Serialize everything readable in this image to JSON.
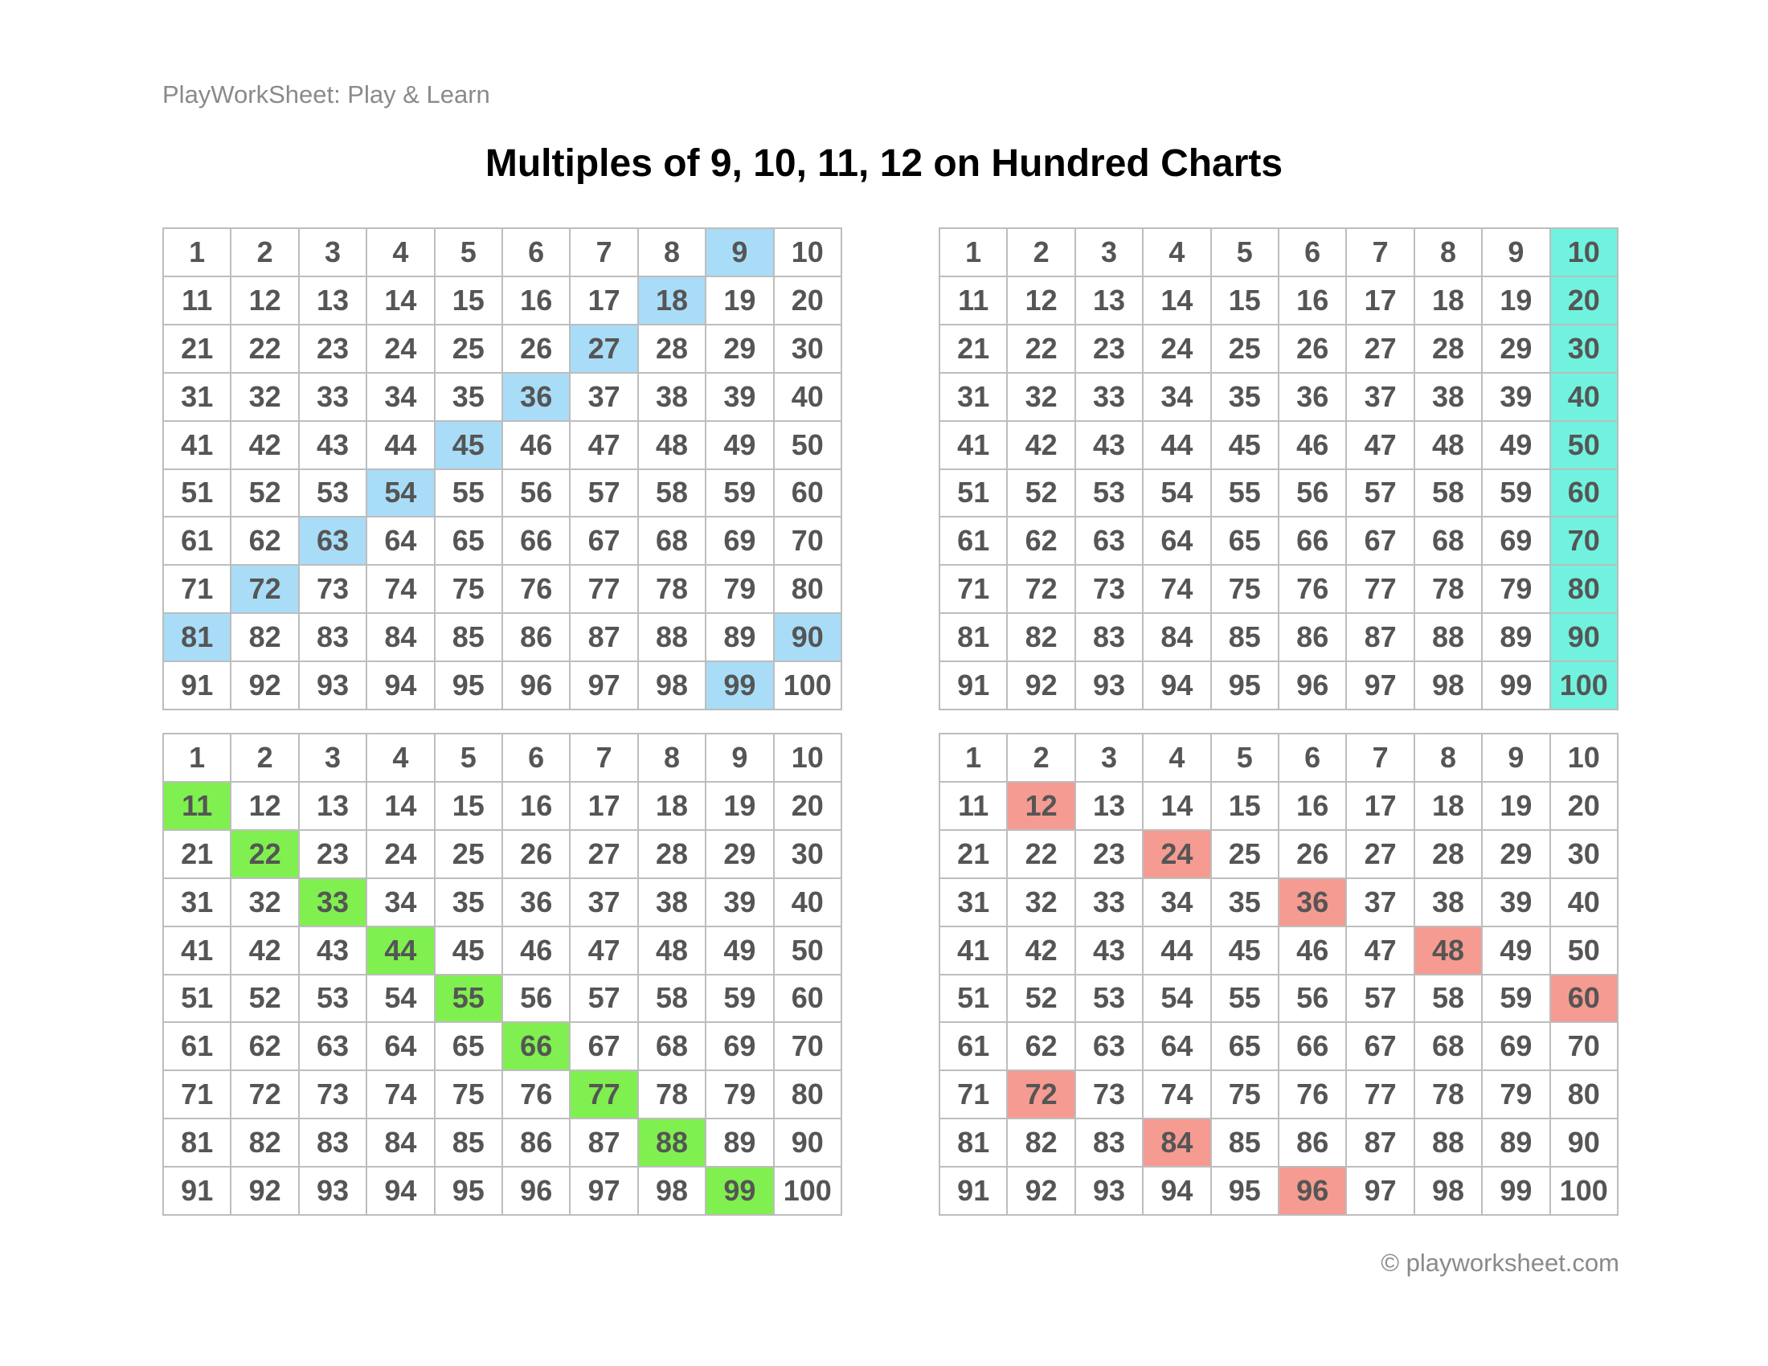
{
  "header": {
    "brand": "PlayWorkSheet: Play & Learn",
    "title": "Multiples of 9, 10, 11, 12 on Hundred Charts"
  },
  "grids": [
    {
      "highlight_color": "#a9dcf7",
      "highlighted": [
        9,
        18,
        27,
        36,
        45,
        54,
        63,
        72,
        81,
        90,
        99
      ],
      "cells": [
        1,
        2,
        3,
        4,
        5,
        6,
        7,
        8,
        9,
        10,
        11,
        12,
        13,
        14,
        15,
        16,
        17,
        18,
        19,
        20,
        21,
        22,
        23,
        24,
        25,
        26,
        27,
        28,
        29,
        30,
        31,
        32,
        33,
        34,
        35,
        36,
        37,
        38,
        39,
        40,
        41,
        42,
        43,
        44,
        45,
        46,
        47,
        48,
        49,
        50,
        51,
        52,
        53,
        54,
        55,
        56,
        57,
        58,
        59,
        60,
        61,
        62,
        63,
        64,
        65,
        66,
        67,
        68,
        69,
        70,
        71,
        72,
        73,
        74,
        75,
        76,
        77,
        78,
        79,
        80,
        81,
        82,
        83,
        84,
        85,
        86,
        87,
        88,
        89,
        90,
        91,
        92,
        93,
        94,
        95,
        96,
        97,
        98,
        99,
        100
      ]
    },
    {
      "highlight_color": "#70f2de",
      "highlighted": [
        10,
        20,
        30,
        40,
        50,
        60,
        70,
        80,
        90,
        100
      ],
      "cells": [
        1,
        2,
        3,
        4,
        5,
        6,
        7,
        8,
        9,
        10,
        11,
        12,
        13,
        14,
        15,
        16,
        17,
        18,
        19,
        20,
        21,
        22,
        23,
        24,
        25,
        26,
        27,
        28,
        29,
        30,
        31,
        32,
        33,
        34,
        35,
        36,
        37,
        38,
        39,
        40,
        41,
        42,
        43,
        44,
        45,
        46,
        47,
        48,
        49,
        50,
        51,
        52,
        53,
        54,
        55,
        56,
        57,
        58,
        59,
        60,
        61,
        62,
        63,
        64,
        65,
        66,
        67,
        68,
        69,
        70,
        71,
        72,
        73,
        74,
        75,
        76,
        77,
        78,
        79,
        80,
        81,
        82,
        83,
        84,
        85,
        86,
        87,
        88,
        89,
        90,
        91,
        92,
        93,
        94,
        95,
        96,
        97,
        98,
        99,
        100
      ]
    },
    {
      "highlight_color": "#7ff04f",
      "highlighted": [
        11,
        22,
        33,
        44,
        55,
        66,
        77,
        88,
        99
      ],
      "cells": [
        1,
        2,
        3,
        4,
        5,
        6,
        7,
        8,
        9,
        10,
        11,
        12,
        13,
        14,
        15,
        16,
        17,
        18,
        19,
        20,
        21,
        22,
        23,
        24,
        25,
        26,
        27,
        28,
        29,
        30,
        31,
        32,
        33,
        34,
        35,
        36,
        37,
        38,
        39,
        40,
        41,
        42,
        43,
        44,
        45,
        46,
        47,
        48,
        49,
        50,
        51,
        52,
        53,
        54,
        55,
        56,
        57,
        58,
        59,
        60,
        61,
        62,
        63,
        64,
        65,
        66,
        67,
        68,
        69,
        70,
        71,
        72,
        73,
        74,
        75,
        76,
        77,
        78,
        79,
        80,
        81,
        82,
        83,
        84,
        85,
        86,
        87,
        88,
        89,
        90,
        91,
        92,
        93,
        94,
        95,
        96,
        97,
        98,
        99,
        100
      ]
    },
    {
      "highlight_color": "#f59b91",
      "highlighted": [
        12,
        24,
        36,
        48,
        60,
        72,
        84,
        96
      ],
      "cells": [
        1,
        2,
        3,
        4,
        5,
        6,
        7,
        8,
        9,
        10,
        11,
        12,
        13,
        14,
        15,
        16,
        17,
        18,
        19,
        20,
        21,
        22,
        23,
        24,
        25,
        26,
        27,
        28,
        29,
        30,
        31,
        32,
        33,
        34,
        35,
        36,
        37,
        38,
        39,
        40,
        41,
        42,
        43,
        44,
        45,
        46,
        47,
        48,
        49,
        50,
        51,
        52,
        53,
        54,
        55,
        56,
        57,
        58,
        59,
        60,
        61,
        62,
        63,
        64,
        65,
        66,
        67,
        68,
        69,
        70,
        71,
        72,
        73,
        74,
        75,
        76,
        77,
        78,
        79,
        80,
        81,
        82,
        83,
        84,
        85,
        86,
        87,
        88,
        89,
        90,
        91,
        92,
        93,
        94,
        95,
        96,
        97,
        98,
        99,
        100
      ]
    }
  ],
  "footer": {
    "copyright": "© playworksheet.com"
  }
}
